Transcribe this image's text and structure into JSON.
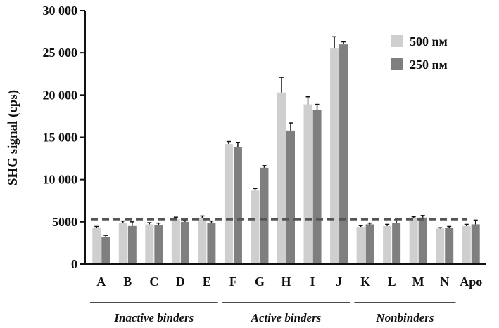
{
  "chart_data": {
    "type": "bar",
    "ylabel": "SHG signal (cps)",
    "xlabel": "",
    "ylim": [
      0,
      30000
    ],
    "yticks": [
      0,
      5000,
      10000,
      15000,
      20000,
      25000,
      30000
    ],
    "ytick_labels": [
      "0",
      "5000",
      "10 000",
      "15 000",
      "20 000",
      "25 000",
      "30 000"
    ],
    "categories": [
      "A",
      "B",
      "C",
      "D",
      "E",
      "F",
      "G",
      "H",
      "I",
      "J",
      "K",
      "L",
      "M",
      "N",
      "Apo"
    ],
    "series": [
      {
        "name": "500 nM",
        "legend_label": "500 nᴍ",
        "color": "#cfcfcf",
        "values": [
          4300,
          4900,
          4700,
          5300,
          5400,
          14200,
          8700,
          20300,
          18900,
          25500,
          4400,
          4500,
          5400,
          4200,
          4500
        ],
        "errors": [
          150,
          200,
          200,
          250,
          300,
          300,
          250,
          1800,
          900,
          1400,
          150,
          200,
          200,
          100,
          200
        ]
      },
      {
        "name": "250 nM",
        "legend_label": "250 nᴍ",
        "color": "#7f7f7f",
        "values": [
          3200,
          4500,
          4600,
          5000,
          4900,
          13800,
          11400,
          15800,
          18200,
          26000,
          4700,
          4900,
          5500,
          4300,
          4700
        ],
        "errors": [
          200,
          500,
          250,
          200,
          200,
          600,
          250,
          900,
          700,
          300,
          150,
          350,
          250,
          150,
          500
        ]
      }
    ],
    "threshold": 5300,
    "threshold_style": "dashed",
    "groups": [
      {
        "label": "Inactive binders",
        "from": "A",
        "to": "E"
      },
      {
        "label": "Active binders",
        "from": "F",
        "to": "J"
      },
      {
        "label": "Nonbinders",
        "from": "K",
        "to": "N"
      }
    ],
    "legend_position": "top-right",
    "grid": false
  }
}
